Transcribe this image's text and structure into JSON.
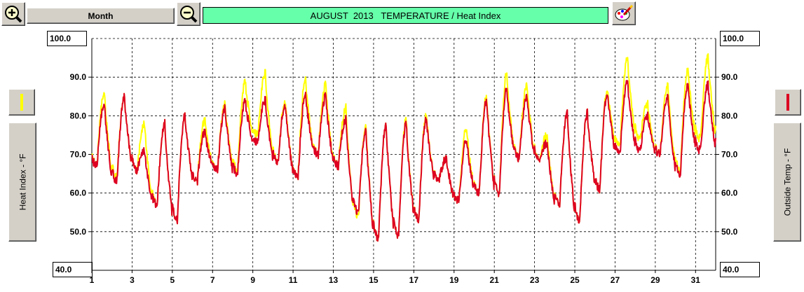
{
  "toolbar": {
    "zoom_in_icon": "zoom-in-magnifier-icon",
    "zoom_out_icon": "zoom-out-magnifier-icon",
    "period_label": "Month",
    "title": "AUGUST  2013   TEMPERATURE / Heat Index",
    "color_tool_icon": "paint-palette-icon"
  },
  "left_axis": {
    "label": "Heat Index - °F",
    "top_scale": "100.0",
    "bottom_scale": "40.0",
    "legend_color": "#ffff00"
  },
  "right_axis": {
    "label": "Outside Temp - °F",
    "top_scale": "100.0",
    "bottom_scale": "40.0",
    "legend_color": "#dd0022"
  },
  "colors": {
    "heat_index": "#ffff00",
    "outside_temp": "#dd0022",
    "title_bg": "#66ffaa"
  },
  "chart_data": {
    "type": "line",
    "title": "AUGUST  2013   TEMPERATURE / Heat Index",
    "xlabel": "",
    "ylabel_left": "Heat Index - °F",
    "ylabel_right": "Outside Temp - °F",
    "xlim": [
      1,
      32
    ],
    "ylim": [
      40,
      100
    ],
    "x_ticks": [
      "1",
      "3",
      "5",
      "7",
      "9",
      "11",
      "13",
      "15",
      "17",
      "19",
      "21",
      "23",
      "25",
      "27",
      "29",
      "31"
    ],
    "y_ticks": [
      "50.0",
      "60.0",
      "70.0",
      "80.0",
      "90.0"
    ],
    "grid": true,
    "daily_extremes": {
      "days": [
        1,
        2,
        3,
        4,
        5,
        6,
        7,
        8,
        9,
        10,
        11,
        12,
        13,
        14,
        15,
        16,
        17,
        18,
        19,
        20,
        21,
        22,
        23,
        24,
        25,
        26,
        27,
        28,
        29,
        30,
        31
      ],
      "temp_low": [
        67,
        63,
        66,
        57,
        53,
        63,
        66,
        65,
        73,
        68,
        64,
        70,
        67,
        55,
        48,
        49,
        53,
        63,
        58,
        60,
        60,
        69,
        69,
        57,
        53,
        61,
        70,
        71,
        70,
        65,
        71
      ],
      "temp_high": [
        83,
        85,
        71,
        78,
        80,
        76,
        82,
        84,
        84,
        83,
        86,
        85,
        79,
        76,
        78,
        78,
        79,
        69,
        74,
        84,
        87,
        85,
        73,
        81,
        81,
        86,
        89,
        80,
        85,
        88,
        88
      ],
      "heat_index_low": [
        67,
        64,
        66,
        57,
        53,
        63,
        66,
        66,
        75,
        68,
        64,
        70,
        67,
        54,
        48,
        49,
        53,
        63,
        58,
        60,
        60,
        69,
        69,
        57,
        53,
        61,
        72,
        74,
        70,
        66,
        74
      ],
      "heat_index_high": [
        86,
        85,
        78,
        78,
        80,
        79,
        83,
        89,
        91,
        84,
        90,
        88,
        82,
        77,
        78,
        79,
        80,
        69,
        77,
        85,
        91,
        88,
        75,
        81,
        81,
        87,
        95,
        83,
        88,
        92,
        95
      ]
    },
    "series": [
      {
        "name": "Heat Index",
        "color": "#ffff00",
        "values": []
      },
      {
        "name": "Outside Temp",
        "color": "#dd0022",
        "values": []
      }
    ]
  }
}
